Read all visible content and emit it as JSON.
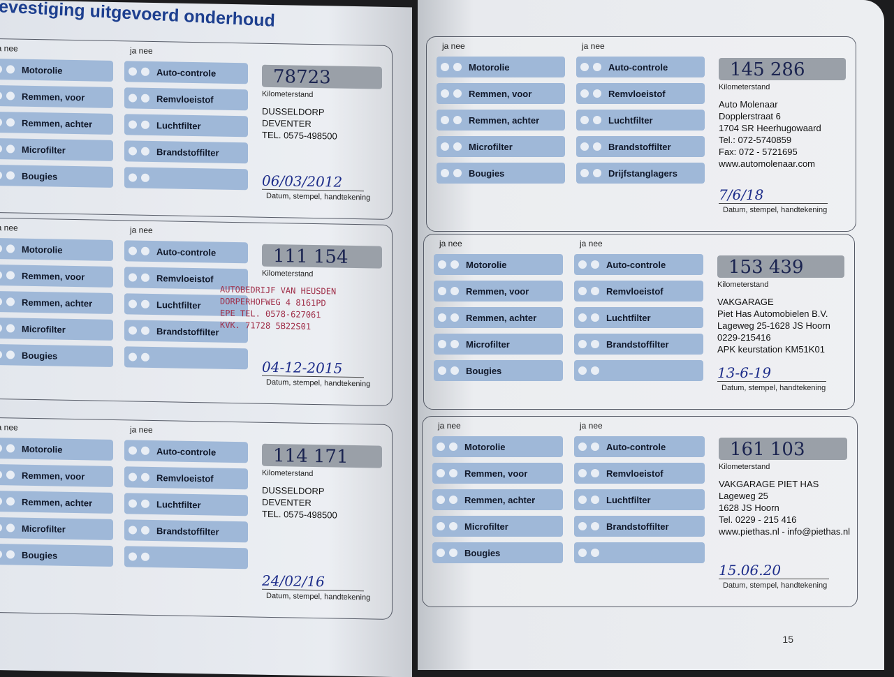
{
  "header": {
    "title": "evestiging uitgevoerd onderhoud"
  },
  "labels": {
    "ja_nee": "ja  nee",
    "km": "Kilometerstand",
    "date": "Datum, stempel, handtekening"
  },
  "page_number": "15",
  "sections": [
    {
      "left": [
        "Motorolie",
        "Remmen, voor",
        "Remmen, achter",
        "Microfilter",
        "Bougies"
      ],
      "right": [
        "Auto-controle",
        "Remvloeistof",
        "Luchtfilter",
        "Brandstoffilter",
        ""
      ],
      "km": "78723",
      "stamp": "DUSSELDORP\nDEVENTER\nTEL. 0575-498500",
      "date": "06/03/2012"
    },
    {
      "left": [
        "Motorolie",
        "Remmen, voor",
        "Remmen, achter",
        "Microfilter",
        "Bougies"
      ],
      "right": [
        "Auto-controle",
        "Remvloeistof",
        "Luchtfilter",
        "Brandstoffilter",
        ""
      ],
      "km": "111 154",
      "stamp": "AUTOBEDRIJF VAN HEUSDEN\nDORPERHOFWEG 4 8161PD\nEPE TEL. 0578-627061\nKVK. 71728 5B22S01",
      "date": "04-12-2015"
    },
    {
      "left": [
        "Motorolie",
        "Remmen, voor",
        "Remmen, achter",
        "Microfilter",
        "Bougies"
      ],
      "right": [
        "Auto-controle",
        "Remvloeistof",
        "Luchtfilter",
        "Brandstoffilter",
        ""
      ],
      "km": "114 171",
      "stamp": "DUSSELDORP\nDEVENTER\nTEL. 0575-498500",
      "date": "24/02/16"
    },
    {
      "left": [
        "Motorolie",
        "Remmen, voor",
        "Remmen, achter",
        "Microfilter",
        "Bougies"
      ],
      "right": [
        "Auto-controle",
        "Remvloeistof",
        "Luchtfilter",
        "Brandstoffilter",
        "Drijfstanglagers"
      ],
      "km": "145 286",
      "stamp": "Auto Molenaar\nDopplerstraat 6\n1704 SR Heerhugowaard\nTel.: 072-5740859\nFax: 072 - 5721695\nwww.automolenaar.com",
      "date": "7/6/18"
    },
    {
      "left": [
        "Motorolie",
        "Remmen, voor",
        "Remmen, achter",
        "Microfilter",
        "Bougies"
      ],
      "right": [
        "Auto-controle",
        "Remvloeistof",
        "Luchtfilter",
        "Brandstoffilter",
        ""
      ],
      "km": "153 439",
      "stamp": "VAKGARAGE\nPiet Has Automobielen B.V.\nLageweg 25-1628 JS Hoorn\n0229-215416\nAPK keurstation KM51K01",
      "date": "13-6-19"
    },
    {
      "left": [
        "Motorolie",
        "Remmen, voor",
        "Remmen, achter",
        "Microfilter",
        "Bougies"
      ],
      "right": [
        "Auto-controle",
        "Remvloeistof",
        "Luchtfilter",
        "Brandstoffilter",
        ""
      ],
      "km": "161 103",
      "stamp": "VAKGARAGE PIET HAS\nLageweg 25\n1628 JS Hoorn\nTel. 0229 - 215 416\nwww.piethas.nl - info@piethas.nl",
      "date": "15.06.20"
    }
  ]
}
